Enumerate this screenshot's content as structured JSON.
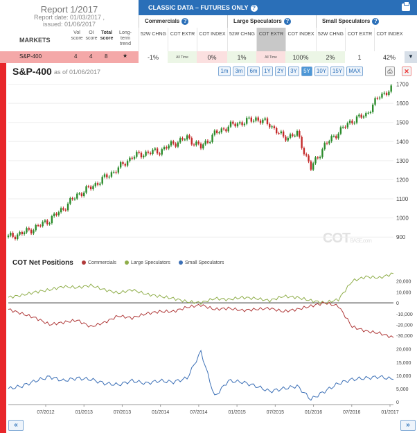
{
  "report": {
    "title": "Report 1/2017",
    "date_line": "Report date: 01/03/2017 ,",
    "issued_line": "issued: 01/06/2017"
  },
  "markets_header": {
    "markets": "MARKETS",
    "vol_score": "Vol score",
    "oi_score": "OI score",
    "total_score": "Total score",
    "long_term_trend": "Long-term trend"
  },
  "panel": {
    "title": "CLASSIC DATA – FUTURES ONLY",
    "groups": [
      {
        "label": "Commercials",
        "columns": [
          "52W CHNG",
          "COT EXTR",
          "COT INDEX"
        ]
      },
      {
        "label": "Large Speculators",
        "columns": [
          "52W CHNG",
          "COT EXTR",
          "COT INDEX"
        ]
      },
      {
        "label": "Small Speculators",
        "columns": [
          "52W CHNG",
          "COT EXTR",
          "COT INDEX"
        ]
      }
    ]
  },
  "row": {
    "market": "S&P-400",
    "vol_score": "4",
    "oi_score": "4",
    "total_score": "8",
    "trend_icon": "star-icon",
    "values": [
      "-1%",
      "All Time",
      "0%",
      "1%",
      "All Time",
      "100%",
      "2%",
      "1",
      "42%"
    ]
  },
  "chart": {
    "title": "S&P-400",
    "as_of": "as of 01/06/2017",
    "ranges": [
      "1m",
      "3m",
      "6m",
      "1Y",
      "2Y",
      "3Y",
      "5Y",
      "10Y",
      "15Y",
      "MAX"
    ],
    "active_range": "5Y",
    "watermark_main": "COT",
    "watermark_sub": "BASE.com"
  },
  "cot": {
    "title": "COT Net Positions",
    "legend": [
      {
        "name": "Commercials",
        "color": "#b03a3a"
      },
      {
        "name": "Large Speculators",
        "color": "#8fae4a"
      },
      {
        "name": "Small Speculators",
        "color": "#3b6fb6"
      }
    ]
  },
  "x_labels": [
    "07/2012",
    "01/2013",
    "07/2013",
    "01/2014",
    "07/2014",
    "01/2015",
    "07/2015",
    "01/2016",
    "07/2016",
    "01/2017"
  ],
  "chart_data": [
    {
      "type": "candlestick",
      "title": "S&P-400",
      "ylim": [
        850,
        1720
      ],
      "yticks": [
        900,
        1000,
        1100,
        1200,
        1300,
        1400,
        1500,
        1600,
        1700
      ],
      "dates": [
        "06/2012",
        "08/2012",
        "10/2012",
        "12/2012",
        "02/2013",
        "04/2013",
        "06/2013",
        "08/2013",
        "10/2013",
        "12/2013",
        "02/2014",
        "04/2014",
        "06/2014",
        "08/2014",
        "10/2014",
        "12/2014",
        "02/2015",
        "04/2015",
        "06/2015",
        "08/2015",
        "10/2015",
        "12/2015",
        "02/2016",
        "04/2016",
        "06/2016",
        "08/2016",
        "10/2016",
        "12/2016",
        "01/2017"
      ],
      "close": [
        900,
        920,
        950,
        990,
        1050,
        1120,
        1160,
        1210,
        1260,
        1320,
        1340,
        1350,
        1390,
        1420,
        1370,
        1440,
        1480,
        1500,
        1520,
        1490,
        1420,
        1440,
        1260,
        1380,
        1450,
        1510,
        1540,
        1640,
        1680
      ]
    },
    {
      "type": "line",
      "title": "COT Net Positions",
      "ylim": [
        -35000,
        30000
      ],
      "yticks_upper": [
        20000,
        10000,
        0,
        -10000,
        -20000,
        -30000
      ],
      "series": [
        {
          "name": "Large Speculators",
          "values": [
            5000,
            7000,
            10000,
            12000,
            15000,
            14000,
            16000,
            12000,
            9000,
            12000,
            8000,
            6000,
            4000,
            1000,
            0,
            4000,
            3000,
            5000,
            4000,
            2000,
            6000,
            5000,
            2000,
            0,
            3000,
            20000,
            24000,
            23000,
            27000
          ]
        },
        {
          "name": "Commercials",
          "values": [
            -6000,
            -10000,
            -14000,
            -20000,
            -18000,
            -16000,
            -22000,
            -18000,
            -12000,
            -14000,
            -10000,
            -8000,
            -8000,
            -4000,
            -2000,
            -6000,
            -5000,
            -7000,
            -6000,
            -5000,
            -8000,
            -6000,
            -3000,
            0,
            -3000,
            -22000,
            -26000,
            -28000,
            -32000
          ]
        }
      ]
    },
    {
      "type": "line",
      "ylim": [
        -1000,
        22000
      ],
      "yticks_lower": [
        20000,
        15000,
        10000,
        5000,
        0
      ],
      "series": [
        {
          "name": "Small Speculators",
          "values": [
            5000,
            6000,
            8000,
            9500,
            8000,
            9000,
            8500,
            7000,
            6500,
            8000,
            7000,
            8000,
            7500,
            9000,
            19000,
            2000,
            8000,
            7500,
            6000,
            4000,
            5000,
            6000,
            1000,
            4000,
            7000,
            8500,
            9000,
            9500,
            8500
          ]
        }
      ]
    }
  ]
}
